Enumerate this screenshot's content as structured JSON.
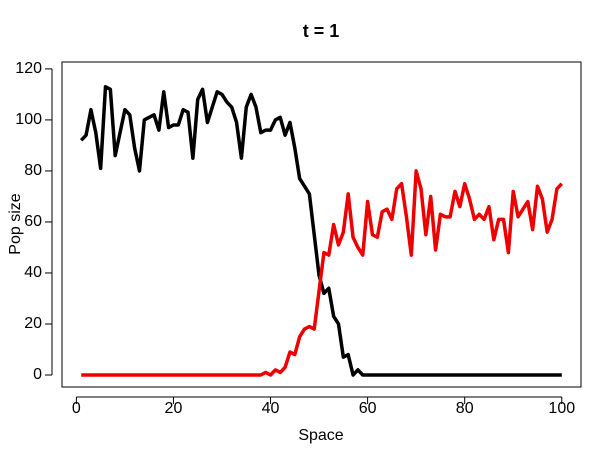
{
  "chart_data": {
    "type": "line",
    "title": "t = 1",
    "x_label": "Space",
    "y_label": "Pop size",
    "x": [
      1,
      2,
      3,
      4,
      5,
      6,
      7,
      8,
      9,
      10,
      11,
      12,
      13,
      14,
      15,
      16,
      17,
      18,
      19,
      20,
      21,
      22,
      23,
      24,
      25,
      26,
      27,
      28,
      29,
      30,
      31,
      32,
      33,
      34,
      35,
      36,
      37,
      38,
      39,
      40,
      41,
      42,
      43,
      44,
      45,
      46,
      47,
      48,
      49,
      50,
      51,
      52,
      53,
      54,
      55,
      56,
      57,
      58,
      59,
      60,
      61,
      62,
      63,
      64,
      65,
      66,
      67,
      68,
      69,
      70,
      71,
      72,
      73,
      74,
      75,
      76,
      77,
      78,
      79,
      80,
      81,
      82,
      83,
      84,
      85,
      86,
      87,
      88,
      89,
      90,
      91,
      92,
      93,
      94,
      95,
      96,
      97,
      98,
      99,
      100
    ],
    "series": [
      {
        "color": "#000000",
        "values": [
          92,
          94,
          104,
          95,
          81,
          113,
          112,
          86,
          95,
          104,
          102,
          89,
          80,
          100,
          101,
          102,
          96,
          111,
          97,
          98,
          98,
          104,
          103,
          85,
          108,
          112,
          99,
          105,
          111,
          110,
          107,
          105,
          99,
          85,
          105,
          110,
          105,
          95,
          96,
          96,
          100,
          101,
          94,
          99,
          89,
          77,
          74,
          71,
          55,
          39,
          32,
          34,
          23,
          20,
          7,
          8,
          0,
          2,
          0,
          0,
          0,
          0,
          0,
          0,
          0,
          0,
          0,
          0,
          0,
          0,
          0,
          0,
          0,
          0,
          0,
          0,
          0,
          0,
          0,
          0,
          0,
          0,
          0,
          0,
          0,
          0,
          0,
          0,
          0,
          0,
          0,
          0,
          0,
          0,
          0,
          0,
          0,
          0,
          0,
          0
        ]
      },
      {
        "color": "#ee0000",
        "values": [
          0,
          0,
          0,
          0,
          0,
          0,
          0,
          0,
          0,
          0,
          0,
          0,
          0,
          0,
          0,
          0,
          0,
          0,
          0,
          0,
          0,
          0,
          0,
          0,
          0,
          0,
          0,
          0,
          0,
          0,
          0,
          0,
          0,
          0,
          0,
          0,
          0,
          0,
          1,
          0,
          2,
          1,
          3,
          9,
          8,
          15,
          18,
          19,
          18,
          33,
          48,
          47,
          59,
          51,
          56,
          71,
          54,
          50,
          47,
          68,
          55,
          54,
          64,
          65,
          61,
          73,
          75,
          62,
          47,
          80,
          73,
          55,
          70,
          49,
          63,
          62,
          62,
          72,
          66,
          75,
          69,
          61,
          63,
          61,
          66,
          53,
          61,
          61,
          48,
          72,
          62,
          65,
          68,
          57,
          74,
          69,
          56,
          61,
          73,
          75
        ]
      }
    ],
    "xlim": [
      -2.96,
      103.96
    ],
    "xticks": [
      0,
      20,
      40,
      60,
      80,
      100
    ],
    "ylim": [
      -4.7,
      122.7
    ],
    "yticks": [
      0,
      20,
      40,
      60,
      80,
      100,
      120
    ]
  }
}
